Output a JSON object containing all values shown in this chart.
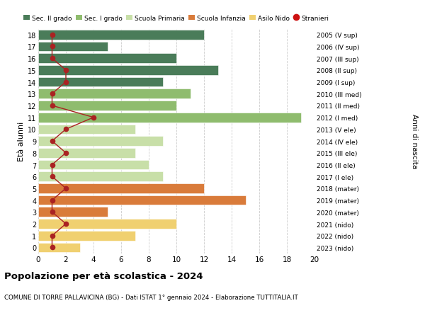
{
  "ages": [
    18,
    17,
    16,
    15,
    14,
    13,
    12,
    11,
    10,
    9,
    8,
    7,
    6,
    5,
    4,
    3,
    2,
    1,
    0
  ],
  "right_labels": [
    "2005 (V sup)",
    "2006 (IV sup)",
    "2007 (III sup)",
    "2008 (II sup)",
    "2009 (I sup)",
    "2010 (III med)",
    "2011 (II med)",
    "2012 (I med)",
    "2013 (V ele)",
    "2014 (IV ele)",
    "2015 (III ele)",
    "2016 (II ele)",
    "2017 (I ele)",
    "2018 (mater)",
    "2019 (mater)",
    "2020 (mater)",
    "2021 (nido)",
    "2022 (nido)",
    "2023 (nido)"
  ],
  "bar_values": [
    12,
    5,
    10,
    13,
    9,
    11,
    10,
    19,
    7,
    9,
    7,
    8,
    9,
    12,
    15,
    5,
    10,
    7,
    3
  ],
  "stranieri_values": [
    1,
    1,
    1,
    2,
    2,
    1,
    1,
    4,
    2,
    1,
    2,
    1,
    1,
    2,
    1,
    1,
    2,
    1,
    1
  ],
  "bar_colors": [
    "#4a7c59",
    "#4a7c59",
    "#4a7c59",
    "#4a7c59",
    "#4a7c59",
    "#8fbc6e",
    "#8fbc6e",
    "#8fbc6e",
    "#c8dfa8",
    "#c8dfa8",
    "#c8dfa8",
    "#c8dfa8",
    "#c8dfa8",
    "#d97b3a",
    "#d97b3a",
    "#d97b3a",
    "#f0d070",
    "#f0d070",
    "#f0d070"
  ],
  "legend_labels": [
    "Sec. II grado",
    "Sec. I grado",
    "Scuola Primaria",
    "Scuola Infanzia",
    "Asilo Nido",
    "Stranieri"
  ],
  "legend_colors": [
    "#4a7c59",
    "#8fbc6e",
    "#c8dfa8",
    "#d97b3a",
    "#f0d070",
    "#cc1111"
  ],
  "stranieri_line_color": "#aa2222",
  "ylabel": "Età alunni",
  "right_ylabel": "Anni di nascita",
  "title_bold": "Popolazione per età scolastica - 2024",
  "subtitle": "COMUNE DI TORRE PALLAVICINA (BG) - Dati ISTAT 1° gennaio 2024 - Elaborazione TUTTITALIA.IT",
  "xlim": [
    0,
    20
  ],
  "ylim_min": -0.5,
  "ylim_max": 18.5,
  "background_color": "#ffffff",
  "grid_color": "#cccccc"
}
